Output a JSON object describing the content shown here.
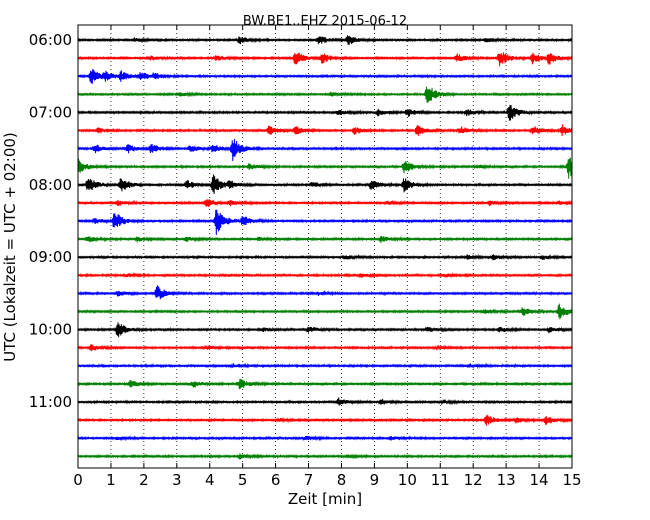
{
  "chart_data": {
    "type": "line",
    "title": "BW.BE1..EHZ 2015-06-12",
    "xlabel": "Zeit  [min]",
    "ylabel": "UTC (Lokalzeit = UTC + 02:00)",
    "xlim": [
      0,
      15
    ],
    "x_ticks": [
      "0",
      "1",
      "2",
      "3",
      "4",
      "5",
      "6",
      "7",
      "8",
      "9",
      "10",
      "11",
      "12",
      "13",
      "14",
      "15"
    ],
    "y_ticks": [
      "06:00",
      "07:00",
      "08:00",
      "09:00",
      "10:00",
      "11:00"
    ],
    "grid": "vertical dotted",
    "trace_minutes": 15,
    "colors": [
      "#000000",
      "#ff0000",
      "#0000ff",
      "#008000"
    ],
    "series": [
      {
        "start": "06:00",
        "color": "#000000",
        "events": [
          [
            4.9,
            0.4
          ],
          [
            7.3,
            0.55
          ],
          [
            8.2,
            0.6
          ],
          [
            12.4,
            0.3
          ],
          [
            1.7,
            0.2
          ]
        ]
      },
      {
        "start": "06:15",
        "color": "#ff0000",
        "events": [
          [
            6.6,
            0.85
          ],
          [
            7.4,
            0.6
          ],
          [
            12.8,
            1.0
          ],
          [
            11.5,
            0.5
          ],
          [
            13.8,
            0.6
          ],
          [
            14.3,
            0.7
          ],
          [
            4.2,
            0.3
          ],
          [
            2.2,
            0.25
          ]
        ]
      },
      {
        "start": "06:30",
        "color": "#0000ff",
        "events": [
          [
            0.4,
            0.9
          ],
          [
            1.3,
            0.6
          ],
          [
            1.9,
            0.5
          ],
          [
            2.3,
            0.3
          ],
          [
            0.8,
            0.5
          ]
        ]
      },
      {
        "start": "06:45",
        "color": "#008000",
        "events": [
          [
            10.6,
            1.2
          ],
          [
            3.1,
            0.2
          ],
          [
            7.7,
            0.2
          ]
        ]
      },
      {
        "start": "07:00",
        "color": "#000000",
        "events": [
          [
            13.1,
            1.0
          ],
          [
            10.0,
            0.5
          ],
          [
            9.1,
            0.4
          ],
          [
            11.8,
            0.4
          ],
          [
            7.9,
            0.3
          ]
        ]
      },
      {
        "start": "07:15",
        "color": "#ff0000",
        "events": [
          [
            0.6,
            0.3
          ],
          [
            5.8,
            0.55
          ],
          [
            6.6,
            0.5
          ],
          [
            8.4,
            0.45
          ],
          [
            10.3,
            0.6
          ],
          [
            11.6,
            0.5
          ],
          [
            13.8,
            0.55
          ],
          [
            14.7,
            0.6
          ]
        ]
      },
      {
        "start": "07:30",
        "color": "#0000ff",
        "events": [
          [
            0.5,
            0.5
          ],
          [
            1.5,
            0.5
          ],
          [
            2.2,
            0.6
          ],
          [
            3.4,
            0.4
          ],
          [
            4.7,
            1.3
          ],
          [
            4.1,
            0.5
          ]
        ]
      },
      {
        "start": "07:45",
        "color": "#008000",
        "events": [
          [
            0.0,
            0.9
          ],
          [
            5.2,
            0.4
          ],
          [
            9.9,
            0.8
          ],
          [
            14.9,
            1.3
          ],
          [
            12.1,
            0.2
          ]
        ]
      },
      {
        "start": "08:00",
        "color": "#000000",
        "events": [
          [
            0.3,
            0.9
          ],
          [
            1.3,
            0.9
          ],
          [
            3.3,
            0.5
          ],
          [
            4.1,
            1.2
          ],
          [
            4.6,
            0.4
          ],
          [
            8.9,
            0.6
          ],
          [
            9.9,
            0.8
          ],
          [
            7.1,
            0.3
          ]
        ]
      },
      {
        "start": "08:15",
        "color": "#ff0000",
        "events": [
          [
            1.2,
            0.3
          ],
          [
            3.9,
            0.5
          ],
          [
            4.6,
            0.3
          ],
          [
            9.4,
            0.2
          ],
          [
            12.5,
            0.25
          ],
          [
            14.6,
            0.2
          ]
        ]
      },
      {
        "start": "08:30",
        "color": "#0000ff",
        "events": [
          [
            1.1,
            1.1
          ],
          [
            4.2,
            1.5
          ],
          [
            5.0,
            0.6
          ],
          [
            0.5,
            0.3
          ]
        ]
      },
      {
        "start": "08:45",
        "color": "#008000",
        "events": [
          [
            0.3,
            0.35
          ],
          [
            1.8,
            0.3
          ],
          [
            3.3,
            0.25
          ],
          [
            9.2,
            0.35
          ],
          [
            5.5,
            0.2
          ]
        ]
      },
      {
        "start": "09:00",
        "color": "#000000",
        "events": [
          [
            8.1,
            0.3
          ],
          [
            11.8,
            0.25
          ],
          [
            12.6,
            0.3
          ],
          [
            14.1,
            0.25
          ]
        ]
      },
      {
        "start": "09:15",
        "color": "#ff0000",
        "events": [
          [
            1.5,
            0.2
          ],
          [
            8.6,
            0.2
          ],
          [
            11.1,
            0.2
          ]
        ]
      },
      {
        "start": "09:30",
        "color": "#0000ff",
        "events": [
          [
            2.4,
            0.9
          ],
          [
            1.2,
            0.3
          ],
          [
            7.3,
            0.2
          ]
        ]
      },
      {
        "start": "09:45",
        "color": "#008000",
        "events": [
          [
            14.6,
            0.9
          ],
          [
            13.5,
            0.5
          ],
          [
            12.3,
            0.2
          ]
        ]
      },
      {
        "start": "10:00",
        "color": "#000000",
        "events": [
          [
            1.2,
            0.9
          ],
          [
            7.0,
            0.3
          ],
          [
            10.6,
            0.3
          ],
          [
            12.8,
            0.3
          ],
          [
            14.3,
            0.3
          ],
          [
            5.6,
            0.2
          ]
        ]
      },
      {
        "start": "10:15",
        "color": "#ff0000",
        "events": [
          [
            0.4,
            0.35
          ],
          [
            3.9,
            0.2
          ],
          [
            10.9,
            0.2
          ]
        ]
      },
      {
        "start": "10:30",
        "color": "#0000ff",
        "events": [
          [
            4.7,
            0.2
          ],
          [
            11.9,
            0.2
          ]
        ]
      },
      {
        "start": "10:45",
        "color": "#008000",
        "events": [
          [
            1.6,
            0.4
          ],
          [
            3.5,
            0.4
          ],
          [
            4.9,
            0.6
          ]
        ]
      },
      {
        "start": "11:00",
        "color": "#000000",
        "events": [
          [
            7.9,
            0.5
          ],
          [
            9.2,
            0.3
          ],
          [
            11.1,
            0.2
          ]
        ]
      },
      {
        "start": "11:15",
        "color": "#ff0000",
        "events": [
          [
            12.4,
            0.6
          ],
          [
            14.2,
            0.5
          ],
          [
            13.3,
            0.3
          ],
          [
            6.1,
            0.15
          ]
        ]
      },
      {
        "start": "11:30",
        "color": "#0000ff",
        "events": [
          [
            1.2,
            0.2
          ],
          [
            6.9,
            0.25
          ],
          [
            9.5,
            0.2
          ]
        ]
      },
      {
        "start": "11:45",
        "color": "#008000",
        "events": [
          [
            4.9,
            0.3
          ],
          [
            8.2,
            0.15
          ]
        ]
      }
    ]
  }
}
